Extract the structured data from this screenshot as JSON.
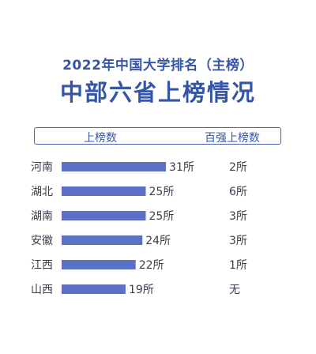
{
  "title": "2022年中国大学排名（主榜）",
  "subtitle": "中部六省上榜情况",
  "headers": {
    "count": "上榜数",
    "top100": "百强上榜数"
  },
  "colors": {
    "title": "#3556a8",
    "bar": "#5b70c6",
    "text": "#3a3f4e"
  },
  "chart_data": {
    "type": "bar",
    "orientation": "horizontal",
    "categories": [
      "河南",
      "湖北",
      "湖南",
      "安徽",
      "江西",
      "山西"
    ],
    "values": [
      31,
      25,
      25,
      24,
      22,
      19
    ],
    "value_labels": [
      "31所",
      "25所",
      "25所",
      "24所",
      "22所",
      "19所"
    ],
    "top100_labels": [
      "2所",
      "6所",
      "3所",
      "3所",
      "1所",
      "无"
    ],
    "grid": false
  }
}
